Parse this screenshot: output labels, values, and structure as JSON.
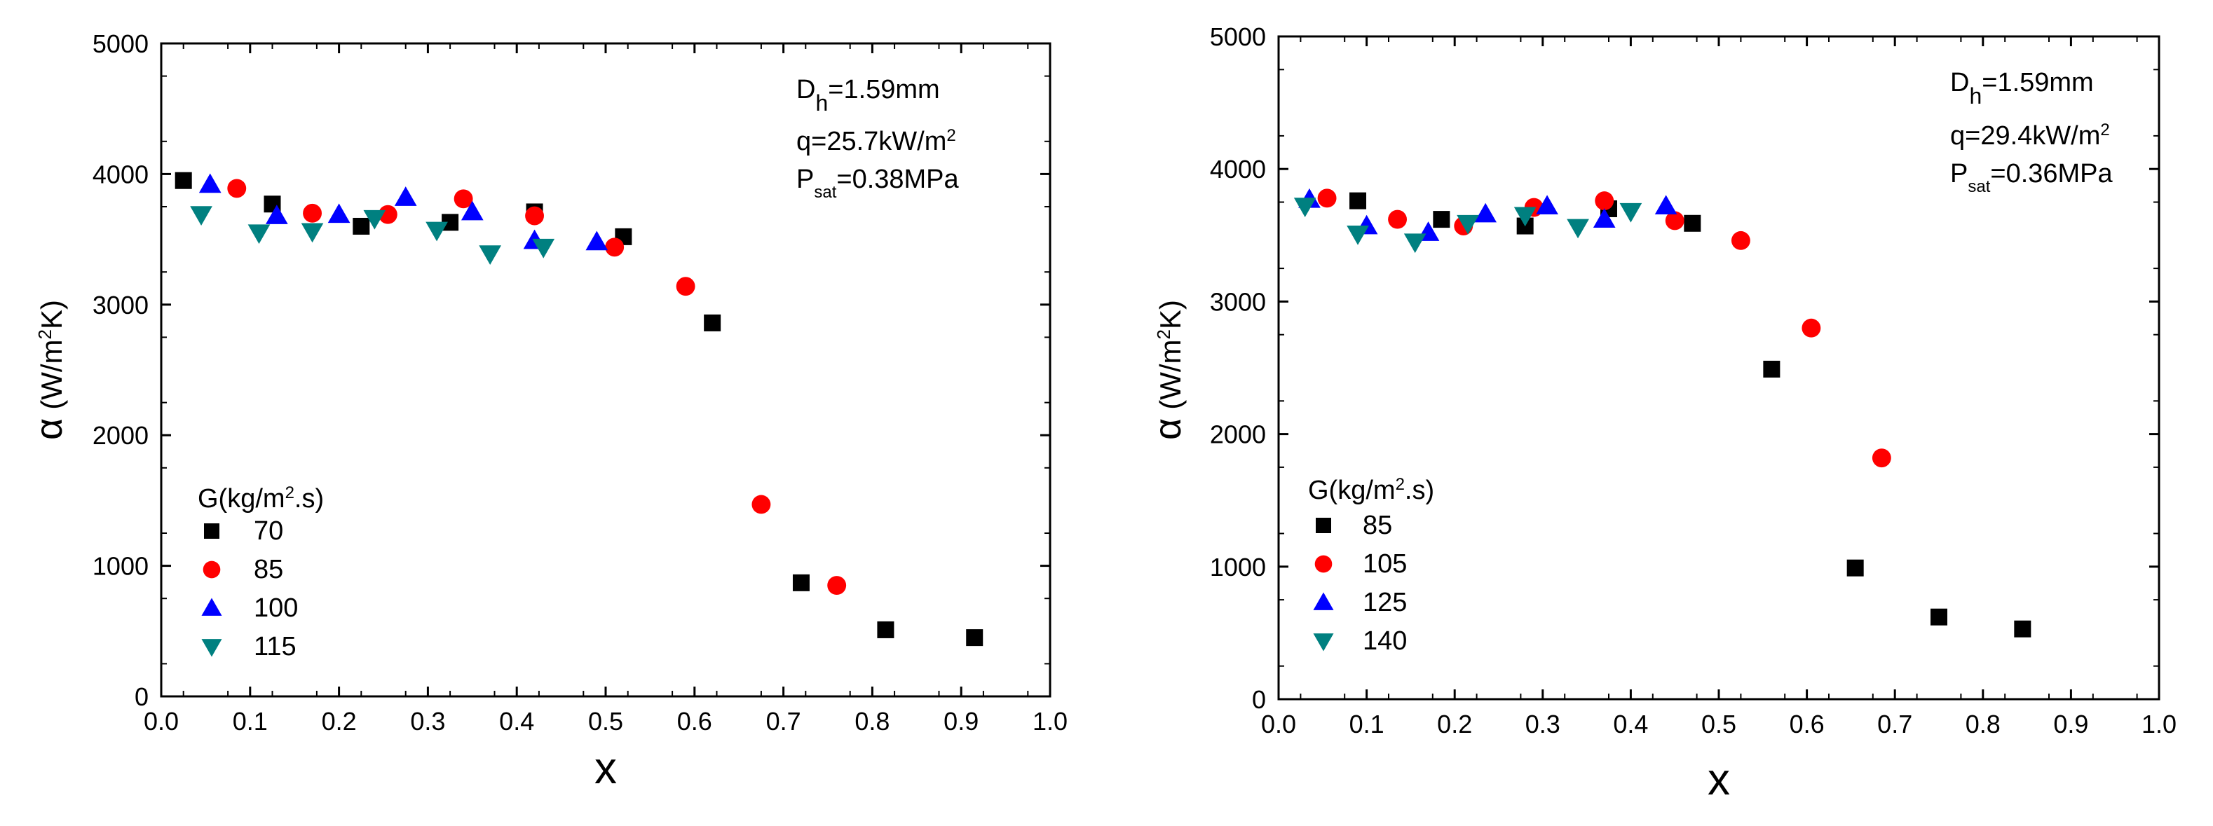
{
  "chart_data": [
    {
      "type": "scatter",
      "xlabel": "x",
      "ylabel": "α (W/m²K)",
      "ylabel_symbol": "α",
      "ylabel_unit_pre": "(W/m",
      "ylabel_unit_sup": "2",
      "ylabel_unit_post": "K)",
      "xlim": [
        0.0,
        1.0
      ],
      "ylim": [
        0,
        5000
      ],
      "x_ticks": [
        "0.0",
        "0.1",
        "0.2",
        "0.3",
        "0.4",
        "0.5",
        "0.6",
        "0.7",
        "0.8",
        "0.9",
        "1.0"
      ],
      "y_ticks": [
        "0",
        "1000",
        "2000",
        "3000",
        "4000",
        "5000"
      ],
      "annotations": {
        "dh_main": "D",
        "dh_sub": "h",
        "dh_value": "=1.59mm",
        "q_text": "q=25.7kW/m",
        "q_sup": "2",
        "p_main": "P",
        "p_sub": "sat",
        "p_value": "=0.38MPa"
      },
      "legend_title_pre": "G(kg/m",
      "legend_title_sup": "2",
      "legend_title_post": ".s)",
      "legend_title": "G(kg/m².s)",
      "series": [
        {
          "name": "70",
          "marker": "square",
          "color": "#000000",
          "points": [
            [
              0.025,
              3950
            ],
            [
              0.125,
              3770
            ],
            [
              0.225,
              3600
            ],
            [
              0.325,
              3630
            ],
            [
              0.42,
              3710
            ],
            [
              0.52,
              3520
            ],
            [
              0.62,
              2860
            ],
            [
              0.72,
              870
            ],
            [
              0.815,
              510
            ],
            [
              0.915,
              450
            ]
          ]
        },
        {
          "name": "85",
          "marker": "circle",
          "color": "#ff0000",
          "points": [
            [
              0.085,
              3890
            ],
            [
              0.17,
              3700
            ],
            [
              0.255,
              3690
            ],
            [
              0.34,
              3810
            ],
            [
              0.42,
              3680
            ],
            [
              0.51,
              3440
            ],
            [
              0.59,
              3140
            ],
            [
              0.675,
              1470
            ],
            [
              0.76,
              850
            ]
          ]
        },
        {
          "name": "100",
          "marker": "triangle-up",
          "color": "#0000ff",
          "points": [
            [
              0.055,
              3920
            ],
            [
              0.13,
              3680
            ],
            [
              0.2,
              3690
            ],
            [
              0.275,
              3820
            ],
            [
              0.35,
              3710
            ],
            [
              0.42,
              3490
            ],
            [
              0.49,
              3480
            ]
          ]
        },
        {
          "name": "115",
          "marker": "triangle-down",
          "color": "#008080",
          "points": [
            [
              0.045,
              3690
            ],
            [
              0.11,
              3550
            ],
            [
              0.17,
              3560
            ],
            [
              0.24,
              3660
            ],
            [
              0.31,
              3570
            ],
            [
              0.37,
              3390
            ],
            [
              0.43,
              3440
            ]
          ]
        }
      ]
    },
    {
      "type": "scatter",
      "xlabel": "x",
      "ylabel": "α (W/m²K)",
      "ylabel_symbol": "α",
      "ylabel_unit_pre": "(W/m",
      "ylabel_unit_sup": "2",
      "ylabel_unit_post": "K)",
      "xlim": [
        0.0,
        1.0
      ],
      "ylim": [
        0,
        5000
      ],
      "x_ticks": [
        "0.0",
        "0.1",
        "0.2",
        "0.3",
        "0.4",
        "0.5",
        "0.6",
        "0.7",
        "0.8",
        "0.9",
        "1.0"
      ],
      "y_ticks": [
        "0",
        "1000",
        "2000",
        "3000",
        "4000",
        "5000"
      ],
      "annotations": {
        "dh_main": "D",
        "dh_sub": "h",
        "dh_value": "=1.59mm",
        "q_text": "q=29.4kW/m",
        "q_sup": "2",
        "p_main": "P",
        "p_sub": "sat",
        "p_value": "=0.36MPa"
      },
      "legend_title_pre": "G(kg/m",
      "legend_title_sup": "2",
      "legend_title_post": ".s)",
      "legend_title": "G(kg/m².s)",
      "series": [
        {
          "name": "85",
          "marker": "square",
          "color": "#000000",
          "points": [
            [
              0.09,
              3760
            ],
            [
              0.185,
              3620
            ],
            [
              0.28,
              3570
            ],
            [
              0.375,
              3700
            ],
            [
              0.47,
              3590
            ],
            [
              0.56,
              2490
            ],
            [
              0.655,
              990
            ],
            [
              0.75,
              620
            ],
            [
              0.845,
              530
            ]
          ]
        },
        {
          "name": "105",
          "marker": "circle",
          "color": "#ff0000",
          "points": [
            [
              0.055,
              3780
            ],
            [
              0.135,
              3620
            ],
            [
              0.21,
              3570
            ],
            [
              0.29,
              3710
            ],
            [
              0.37,
              3760
            ],
            [
              0.45,
              3610
            ],
            [
              0.525,
              3460
            ],
            [
              0.605,
              2800
            ],
            [
              0.685,
              1820
            ]
          ]
        },
        {
          "name": "125",
          "marker": "triangle-up",
          "color": "#0000ff",
          "points": [
            [
              0.035,
              3770
            ],
            [
              0.1,
              3570
            ],
            [
              0.17,
              3520
            ],
            [
              0.235,
              3660
            ],
            [
              0.305,
              3720
            ],
            [
              0.37,
              3620
            ],
            [
              0.44,
              3720
            ]
          ]
        },
        {
          "name": "140",
          "marker": "triangle-down",
          "color": "#008080",
          "points": [
            [
              0.03,
              3720
            ],
            [
              0.09,
              3510
            ],
            [
              0.155,
              3450
            ],
            [
              0.215,
              3590
            ],
            [
              0.28,
              3650
            ],
            [
              0.34,
              3560
            ],
            [
              0.4,
              3680
            ]
          ]
        }
      ]
    }
  ]
}
